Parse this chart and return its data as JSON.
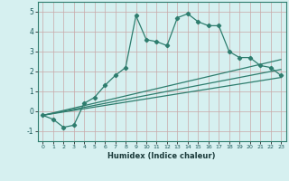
{
  "xlabel": "Humidex (Indice chaleur)",
  "main_x": [
    0,
    1,
    2,
    3,
    4,
    5,
    6,
    7,
    8,
    9,
    10,
    11,
    12,
    13,
    14,
    15,
    16,
    17,
    18,
    19,
    20,
    21,
    22,
    23
  ],
  "main_y": [
    -0.2,
    -0.4,
    -0.8,
    -0.7,
    0.4,
    0.7,
    1.3,
    1.8,
    2.2,
    4.8,
    3.6,
    3.5,
    3.3,
    4.7,
    4.9,
    4.5,
    4.3,
    4.3,
    3.0,
    2.7,
    2.7,
    2.3,
    2.2,
    1.8
  ],
  "line1_x": [
    0,
    23
  ],
  "line1_y": [
    -0.2,
    2.6
  ],
  "line2_x": [
    0,
    23
  ],
  "line2_y": [
    -0.2,
    2.1
  ],
  "line3_x": [
    0,
    23
  ],
  "line3_y": [
    -0.2,
    1.7
  ],
  "line_color": "#2e7d6e",
  "bg_color": "#d6f0f0",
  "grid_color": "#b8d8d8",
  "ylim": [
    -1.5,
    5.5
  ],
  "xlim": [
    -0.5,
    23.5
  ],
  "yticks": [
    -1,
    0,
    1,
    2,
    3,
    4,
    5
  ],
  "xticks": [
    0,
    1,
    2,
    3,
    4,
    5,
    6,
    7,
    8,
    9,
    10,
    11,
    12,
    13,
    14,
    15,
    16,
    17,
    18,
    19,
    20,
    21,
    22,
    23
  ]
}
